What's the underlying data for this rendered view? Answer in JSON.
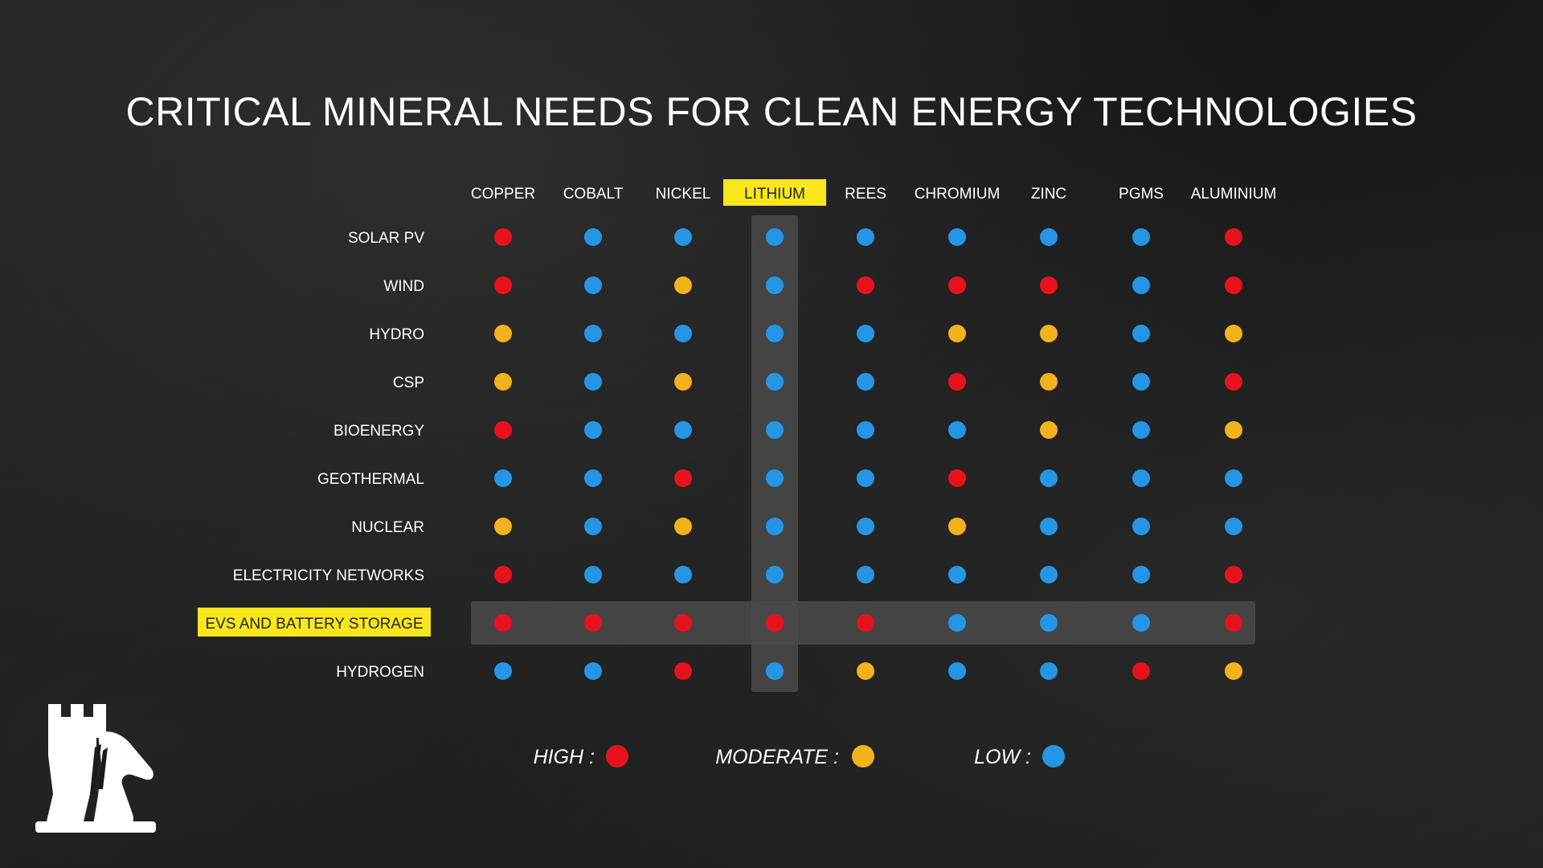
{
  "colors": {
    "high": "#e8121f",
    "moderate": "#f2b21c",
    "low": "#2596e6",
    "highlight": "#f8e71c",
    "band": "#4a4a4a"
  },
  "chart_data": {
    "type": "heatmap",
    "title": "CRITICAL MINERAL NEEDS FOR CLEAN ENERGY TECHNOLOGIES",
    "columns": [
      "COPPER",
      "COBALT",
      "NICKEL",
      "LITHIUM",
      "REES",
      "CHROMIUM",
      "ZINC",
      "PGMS",
      "ALUMINIUM"
    ],
    "rows": [
      "SOLAR PV",
      "WIND",
      "HYDRO",
      "CSP",
      "BIOENERGY",
      "GEOTHERMAL",
      "NUCLEAR",
      "ELECTRICITY NETWORKS",
      "EVS AND BATTERY STORAGE",
      "HYDROGEN"
    ],
    "highlighted_column": "LITHIUM",
    "highlighted_row": "EVS AND BATTERY STORAGE",
    "levels": [
      "high",
      "moderate",
      "low"
    ],
    "values": [
      [
        "high",
        "low",
        "low",
        "low",
        "low",
        "low",
        "low",
        "low",
        "high"
      ],
      [
        "high",
        "low",
        "moderate",
        "low",
        "high",
        "high",
        "high",
        "low",
        "high"
      ],
      [
        "moderate",
        "low",
        "low",
        "low",
        "low",
        "moderate",
        "moderate",
        "low",
        "moderate"
      ],
      [
        "moderate",
        "low",
        "moderate",
        "low",
        "low",
        "high",
        "moderate",
        "low",
        "high"
      ],
      [
        "high",
        "low",
        "low",
        "low",
        "low",
        "low",
        "moderate",
        "low",
        "moderate"
      ],
      [
        "low",
        "low",
        "high",
        "low",
        "low",
        "high",
        "low",
        "low",
        "low"
      ],
      [
        "moderate",
        "low",
        "moderate",
        "low",
        "low",
        "moderate",
        "low",
        "low",
        "low"
      ],
      [
        "high",
        "low",
        "low",
        "low",
        "low",
        "low",
        "low",
        "low",
        "high"
      ],
      [
        "high",
        "high",
        "high",
        "high",
        "high",
        "low",
        "low",
        "low",
        "high"
      ],
      [
        "low",
        "low",
        "high",
        "low",
        "moderate",
        "low",
        "low",
        "high",
        "moderate"
      ]
    ],
    "legend": [
      {
        "label": "HIGH :",
        "level": "high"
      },
      {
        "label": "MODERATE :",
        "level": "moderate"
      },
      {
        "label": "LOW :",
        "level": "low"
      }
    ]
  }
}
